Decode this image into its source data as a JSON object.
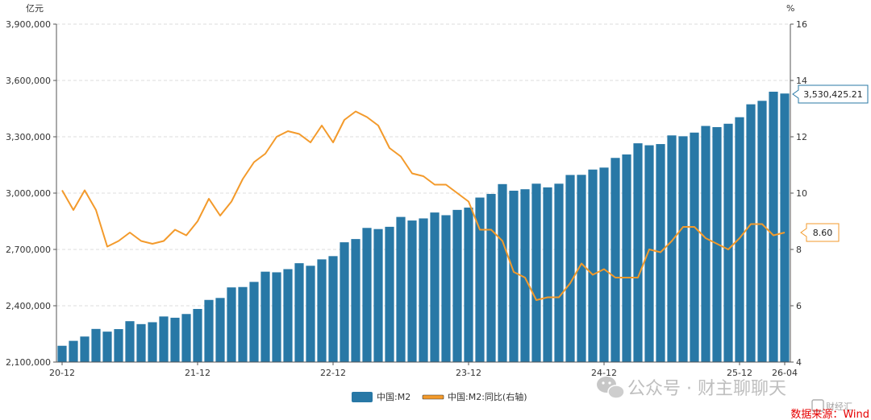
{
  "chart_data": {
    "type": "bar",
    "left_unit": "亿元",
    "right_unit": "%",
    "ylim_left": [
      2100000,
      3900000
    ],
    "ylim_right": [
      4,
      16
    ],
    "left_ticks": [
      "2,100,000",
      "2,400,000",
      "2,700,000",
      "3,000,000",
      "3,300,000",
      "3,600,000",
      "3,900,000"
    ],
    "right_ticks": [
      "4",
      "6",
      "8",
      "10",
      "12",
      "14",
      "16"
    ],
    "x_tick_labels": [
      "20-12",
      "21-12",
      "22-12",
      "23-12",
      "24-12",
      "25-12",
      "26-04"
    ],
    "grid": true,
    "legend_position": "bottom",
    "categories": [
      "20-12",
      "21-01",
      "21-02",
      "21-03",
      "21-04",
      "21-05",
      "21-06",
      "21-07",
      "21-08",
      "21-09",
      "21-10",
      "21-11",
      "21-12",
      "22-01",
      "22-02",
      "22-03",
      "22-04",
      "22-05",
      "22-06",
      "22-07",
      "22-08",
      "22-09",
      "22-10",
      "22-11",
      "22-12",
      "23-01",
      "23-02",
      "23-03",
      "23-04",
      "23-05",
      "23-06",
      "23-07",
      "23-08",
      "23-09",
      "23-10",
      "23-11",
      "23-12",
      "24-01",
      "24-02",
      "24-03",
      "24-04",
      "24-05",
      "24-06",
      "24-07",
      "24-08",
      "24-09",
      "24-10",
      "24-11",
      "24-12",
      "25-01",
      "25-02",
      "25-03",
      "25-04",
      "25-05",
      "25-06",
      "25-07",
      "25-08",
      "25-09",
      "25-10",
      "25-11",
      "25-12",
      "26-01",
      "26-02",
      "26-03",
      "26-04"
    ],
    "series": [
      {
        "name": "中国:M2",
        "type": "bar",
        "axis": "left",
        "color": "#2878a6",
        "values": [
          2186796,
          2213049,
          2236030,
          2276488,
          2262105,
          2275536,
          2317788,
          2302205,
          2312285,
          2342829,
          2336159,
          2356012,
          2382899,
          2431022,
          2441488,
          2497688,
          2499688,
          2527026,
          2581451,
          2578079,
          2595068,
          2626600,
          2612914,
          2647008,
          2664320,
          2738072,
          2755249,
          2814566,
          2808469,
          2820504,
          2873023,
          2854033,
          2865207,
          2896659,
          2882276,
          2910579,
          2922713,
          2976250,
          2995563,
          3047952,
          3012800,
          3020600,
          3050200,
          3030500,
          3050100,
          3096600,
          3097300,
          3125400,
          3135900,
          3187500,
          3205900,
          3265300,
          3254800,
          3261200,
          3307300,
          3302800,
          3322300,
          3357700,
          3351400,
          3369500,
          3404200,
          3473000,
          3491500,
          3540100,
          3530425.21
        ]
      },
      {
        "name": "中国:M2:同比(右轴)",
        "type": "line",
        "axis": "right",
        "color": "#f39a2b",
        "values": [
          10.1,
          9.4,
          10.1,
          9.4,
          8.1,
          8.3,
          8.6,
          8.3,
          8.2,
          8.3,
          8.7,
          8.5,
          9.0,
          9.8,
          9.2,
          9.7,
          10.5,
          11.1,
          11.4,
          12.0,
          12.2,
          12.1,
          11.8,
          12.4,
          11.8,
          12.6,
          12.9,
          12.7,
          12.4,
          11.6,
          11.3,
          10.7,
          10.6,
          10.3,
          10.3,
          10.0,
          9.7,
          8.7,
          8.7,
          8.3,
          7.2,
          7.0,
          6.2,
          6.3,
          6.3,
          6.8,
          7.5,
          7.1,
          7.3,
          7.0,
          7.0,
          7.0,
          8.0,
          7.9,
          8.3,
          8.8,
          8.8,
          8.4,
          8.2,
          8.0,
          8.4,
          8.9,
          8.9,
          8.5,
          8.6
        ]
      }
    ],
    "callouts": {
      "bar_last": "3,530,425.21",
      "line_last": "8.60"
    }
  },
  "watermark": {
    "account": "公众号 · 财主聊聊天",
    "corner_brand": "财经汇"
  },
  "source_note": "数据来源：Wind"
}
